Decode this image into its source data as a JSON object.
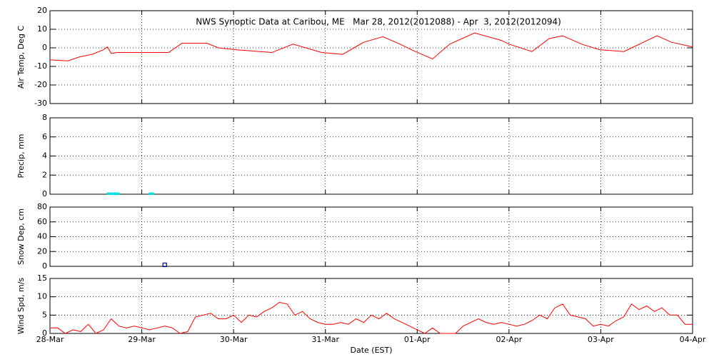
{
  "chart_data": [
    {
      "type": "line",
      "title": "NWS Synoptic Data at Caribou, ME   Mar 28, 2012(2012088) - Apr  3, 2012(2012094)",
      "ylabel": "Air Temp, Deg C",
      "color": "#ff0000",
      "x": [
        0,
        4.7,
        7.5,
        11,
        14,
        15,
        16,
        17.5,
        24,
        31,
        34.5,
        41,
        44,
        48.5,
        58,
        63.5,
        71,
        76.5,
        82,
        87,
        91.5,
        95,
        100,
        104.5,
        111,
        118,
        120,
        126,
        130.5,
        134,
        139,
        143.7,
        150,
        158.7,
        162.5,
        168
      ],
      "values": [
        -6.5,
        -7,
        -5,
        -3.5,
        -1,
        0.5,
        -3,
        -2.5,
        -2.5,
        -2.5,
        2.5,
        2.5,
        0,
        -1,
        -2.5,
        2,
        -2.5,
        -3.5,
        3,
        6,
        2,
        -1.5,
        -6,
        2,
        8,
        4,
        2,
        -2,
        5,
        6.5,
        2,
        -1,
        -2,
        6.5,
        3,
        0.5
      ],
      "xlim": [
        0,
        168
      ],
      "xticks": [
        0,
        24,
        48,
        72,
        96,
        120,
        144,
        168
      ],
      "ylim": [
        -30,
        20
      ],
      "yticks": [
        -30,
        -20,
        -10,
        0,
        10,
        20
      ],
      "grid": true
    },
    {
      "type": "bar",
      "ylabel": "Precip, mm",
      "color": "#00e0e0",
      "x": [
        15,
        16,
        17,
        26
      ],
      "values": [
        0.1,
        0.1,
        0.1,
        0.1
      ],
      "xlim": [
        0,
        168
      ],
      "xticks": [
        0,
        24,
        48,
        72,
        96,
        120,
        144,
        168
      ],
      "ylim": [
        0,
        8
      ],
      "yticks": [
        0,
        2,
        4,
        6,
        8
      ],
      "grid": true
    },
    {
      "type": "scatter",
      "ylabel": "Snow Dep, cm",
      "color": "#000080",
      "x": [
        30
      ],
      "values": [
        2
      ],
      "xlim": [
        0,
        168
      ],
      "xticks": [
        0,
        24,
        48,
        72,
        96,
        120,
        144,
        168
      ],
      "ylim": [
        0,
        80
      ],
      "yticks": [
        0,
        20,
        40,
        60,
        80
      ],
      "grid": true
    },
    {
      "type": "line",
      "ylabel": "Wind Spd, m/s",
      "xlabel": "Date (EST)",
      "color": "#ff0000",
      "x": [
        0,
        2,
        4,
        6,
        8,
        10,
        12,
        14,
        16,
        18,
        20,
        22,
        24,
        26,
        28,
        30,
        32,
        34,
        36,
        38,
        40,
        42,
        44,
        46,
        48,
        50,
        52,
        54,
        56,
        58,
        60,
        62,
        64,
        66,
        68,
        70,
        72,
        74,
        76,
        78,
        80,
        82,
        84,
        86,
        88,
        90,
        92,
        94,
        96,
        98,
        100,
        102,
        104,
        106,
        108,
        110,
        112,
        114,
        116,
        118,
        120,
        122,
        124,
        126,
        128,
        130,
        132,
        134,
        136,
        138,
        140,
        142,
        144,
        146,
        148,
        150,
        152,
        154,
        156,
        158,
        160,
        162,
        164,
        166,
        168
      ],
      "values": [
        1.5,
        1.5,
        0,
        1,
        0.5,
        2.5,
        0,
        1,
        4,
        2,
        1.5,
        2,
        1.5,
        1,
        1.5,
        2,
        1.5,
        0,
        0.5,
        4.5,
        5,
        5.5,
        4,
        4,
        5,
        3,
        5,
        4.5,
        6,
        7,
        8.5,
        8,
        5,
        6,
        4,
        3,
        2.5,
        2.5,
        3,
        2.5,
        4,
        3,
        5,
        4,
        5.5,
        4,
        3,
        2,
        1,
        0,
        1.5,
        0,
        0,
        0,
        2,
        3,
        4,
        3,
        2.5,
        3,
        2.5,
        2,
        2.5,
        3.5,
        5,
        4,
        7,
        8,
        5,
        4.5,
        4,
        2,
        2.5,
        2,
        3.5,
        4.5,
        8,
        6.5,
        7.5,
        6,
        7,
        5,
        5,
        2.5,
        2.5
      ],
      "xlim": [
        0,
        168
      ],
      "xticks": [
        {
          "value": 0,
          "label": "28-Mar"
        },
        {
          "value": 24,
          "label": "29-Mar"
        },
        {
          "value": 48,
          "label": "30-Mar"
        },
        {
          "value": 72,
          "label": "31-Mar"
        },
        {
          "value": 96,
          "label": "01-Apr"
        },
        {
          "value": 120,
          "label": "02-Apr"
        },
        {
          "value": 144,
          "label": "03-Apr"
        },
        {
          "value": 168,
          "label": "04-Apr"
        }
      ],
      "ylim": [
        0,
        15
      ],
      "yticks": [
        0,
        5,
        10,
        15
      ],
      "grid": true
    }
  ]
}
